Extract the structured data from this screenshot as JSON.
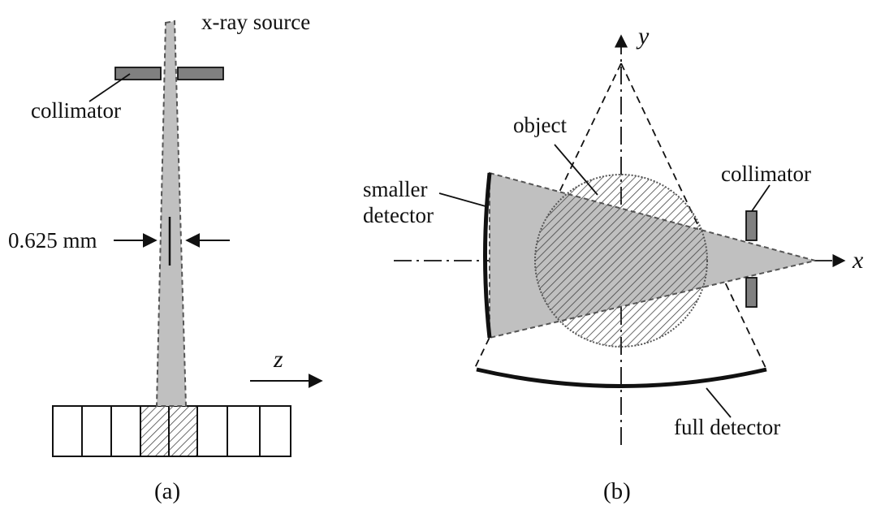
{
  "colors": {
    "beam": "#c0c0c0",
    "beam_edge": "#555555",
    "collimator": "#808080",
    "ink": "#111111",
    "hatch": "#444444"
  },
  "panel_a": {
    "source_label": "x-ray source",
    "collimator_label": "collimator",
    "width_label": "0.625 mm",
    "axis_label": "z",
    "caption": "(a)"
  },
  "panel_b": {
    "y_axis_label": "y",
    "x_axis_label": "x",
    "object_label": "object",
    "smaller_detector_label_line1": "smaller",
    "smaller_detector_label_line2": "detector",
    "collimator_label": "collimator",
    "full_detector_label": "full detector",
    "caption": "(b)"
  }
}
